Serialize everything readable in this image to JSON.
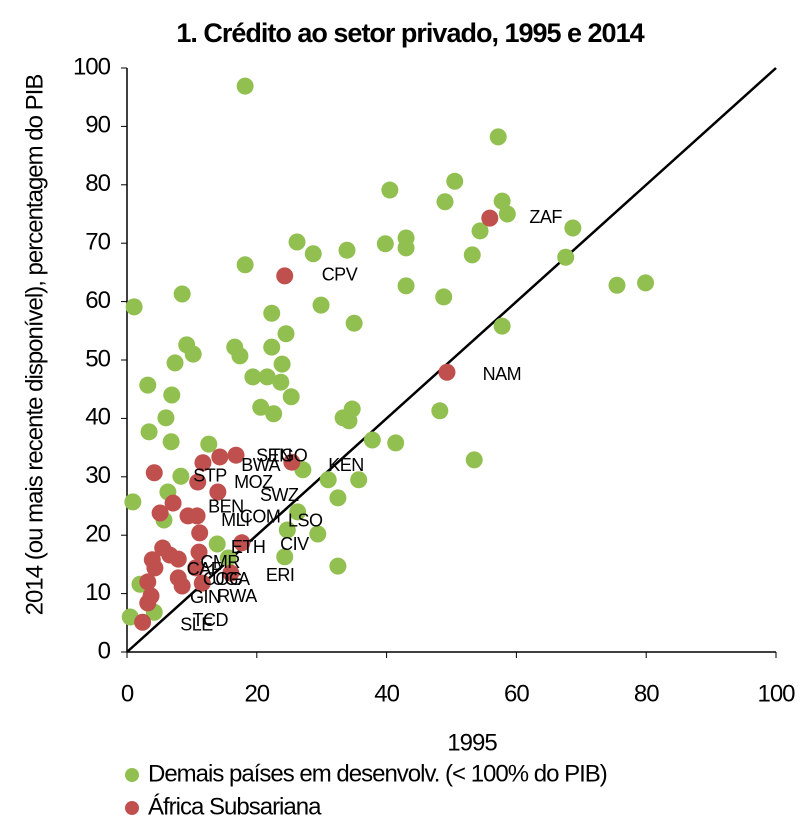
{
  "chart_data": {
    "type": "scatter",
    "title": "1. Crédito ao setor privado, 1995 e 2014",
    "x_label": "1995",
    "y_label": "2014 (ou mais recente disponível), percentagem do PIB",
    "xlim": [
      0,
      100
    ],
    "ylim": [
      0,
      100
    ],
    "xticks": [
      0,
      20,
      40,
      60,
      80,
      100
    ],
    "yticks": [
      0,
      10,
      20,
      30,
      40,
      50,
      60,
      70,
      80,
      90,
      100
    ],
    "series": [
      {
        "name": "Demais países em desenvolv. (< 100% do PIB)",
        "color": "#92c050",
        "x": [
          18.2,
          57.2,
          50.5,
          40.5,
          49,
          57.8,
          58.6,
          54.4,
          68.7,
          43,
          43,
          39.8,
          33.9,
          28.7,
          26.2,
          53.2,
          67.6,
          18.2,
          75.5,
          79.9,
          43,
          48.8,
          8.5,
          1.1,
          29.9,
          22.3,
          35,
          57.8,
          24.5,
          9.2,
          16.6,
          22.3,
          17.4,
          10.2,
          7.4,
          23.9,
          19.4,
          21.6,
          23.7,
          3.2,
          6.9,
          25.3,
          20.6,
          48.2,
          34.7,
          22.6,
          33.3,
          34.2,
          6,
          3.4,
          6.8,
          37.8,
          41.4,
          12.6,
          53.5,
          27.1,
          8.3,
          31,
          35.7,
          6.3,
          0.9,
          32.5,
          5.7,
          26.3,
          24.7,
          29.4,
          13.9,
          24.3,
          15.6,
          2,
          32.5,
          0.5,
          4.2
        ],
        "values": [
          96.9,
          88.2,
          80.6,
          79.1,
          77.1,
          77.2,
          75,
          72.1,
          72.6,
          70.9,
          69.2,
          69.9,
          68.8,
          68.2,
          70.2,
          68,
          67.6,
          66.3,
          62.8,
          63.2,
          62.7,
          60.8,
          61.3,
          59.1,
          59.4,
          58,
          56.3,
          55.8,
          54.5,
          52.6,
          52.2,
          52.2,
          50.7,
          51,
          49.5,
          49.3,
          47.1,
          47.1,
          46.2,
          45.7,
          44,
          43.7,
          41.9,
          41.3,
          41.6,
          40.8,
          40.1,
          39.6,
          40.1,
          37.7,
          36,
          36.3,
          35.8,
          35.6,
          32.9,
          31.2,
          30.1,
          29.5,
          29.5,
          27.4,
          25.7,
          26.4,
          22.6,
          24,
          20.9,
          20.2,
          18.5,
          16.3,
          16.1,
          11.6,
          14.7,
          6,
          6.8
        ]
      },
      {
        "name": "África Subsariana",
        "color": "#c0504d",
        "x": [
          24.3,
          55.9,
          49.3,
          4.2,
          14.3,
          16.8,
          11.7,
          25.4,
          10.9,
          14,
          7.1,
          5.1,
          9.4,
          10.8,
          11.2,
          17.7,
          5.5,
          11.1,
          6.6,
          7.9,
          3.9,
          4.3,
          10.6,
          16,
          7.9,
          3.2,
          11.6,
          8.5,
          3.7,
          3.2,
          2.4
        ],
        "values": [
          64.4,
          74.3,
          47.9,
          30.7,
          33.4,
          33.7,
          32.4,
          32.5,
          29.1,
          27.4,
          25.5,
          23.8,
          23.3,
          23.3,
          20.4,
          18.7,
          17.8,
          17.1,
          16.6,
          15.9,
          15.8,
          14.4,
          14.4,
          13.5,
          12.7,
          12,
          11.8,
          11.3,
          9.6,
          8.4,
          5.1
        ]
      }
    ],
    "annotations": [
      {
        "text": "CPV",
        "x": 30,
        "y": 64.4
      },
      {
        "text": "ZAF",
        "x": 62,
        "y": 74.3
      },
      {
        "text": "NAM",
        "x": 54.8,
        "y": 47.4
      },
      {
        "text": "STP",
        "x": 10.2,
        "y": 30
      },
      {
        "text": "BWA",
        "x": 17.6,
        "y": 31.8
      },
      {
        "text": "SEN",
        "x": 19.9,
        "y": 33.4
      },
      {
        "text": "TGO",
        "x": 22,
        "y": 33.4
      },
      {
        "text": "KEN",
        "x": 31,
        "y": 31.8
      },
      {
        "text": "MOZ",
        "x": 16.5,
        "y": 28.9
      },
      {
        "text": "SWZ",
        "x": 20.5,
        "y": 26.7
      },
      {
        "text": "BEN",
        "x": 12.5,
        "y": 24.7
      },
      {
        "text": "MLI",
        "x": 14.5,
        "y": 22.4
      },
      {
        "text": "COM",
        "x": 17.4,
        "y": 23
      },
      {
        "text": "LSO",
        "x": 24.8,
        "y": 22.3
      },
      {
        "text": "CIV",
        "x": 23.6,
        "y": 18.3
      },
      {
        "text": "ETH",
        "x": 16,
        "y": 17.8
      },
      {
        "text": "CAF",
        "x": 9.2,
        "y": 14
      },
      {
        "text": "CMR",
        "x": 11.3,
        "y": 15.2
      },
      {
        "text": "ERI",
        "x": 21.4,
        "y": 13
      },
      {
        "text": "UGA",
        "x": 13.1,
        "y": 12.3
      },
      {
        "text": "COG",
        "x": 11.7,
        "y": 12.3
      },
      {
        "text": "GIN",
        "x": 9.7,
        "y": 9.2
      },
      {
        "text": "RWA",
        "x": 13.9,
        "y": 9.4
      },
      {
        "text": "TCD",
        "x": 10.1,
        "y": 5.3
      },
      {
        "text": "SLE",
        "x": 8.2,
        "y": 4.5
      }
    ]
  }
}
